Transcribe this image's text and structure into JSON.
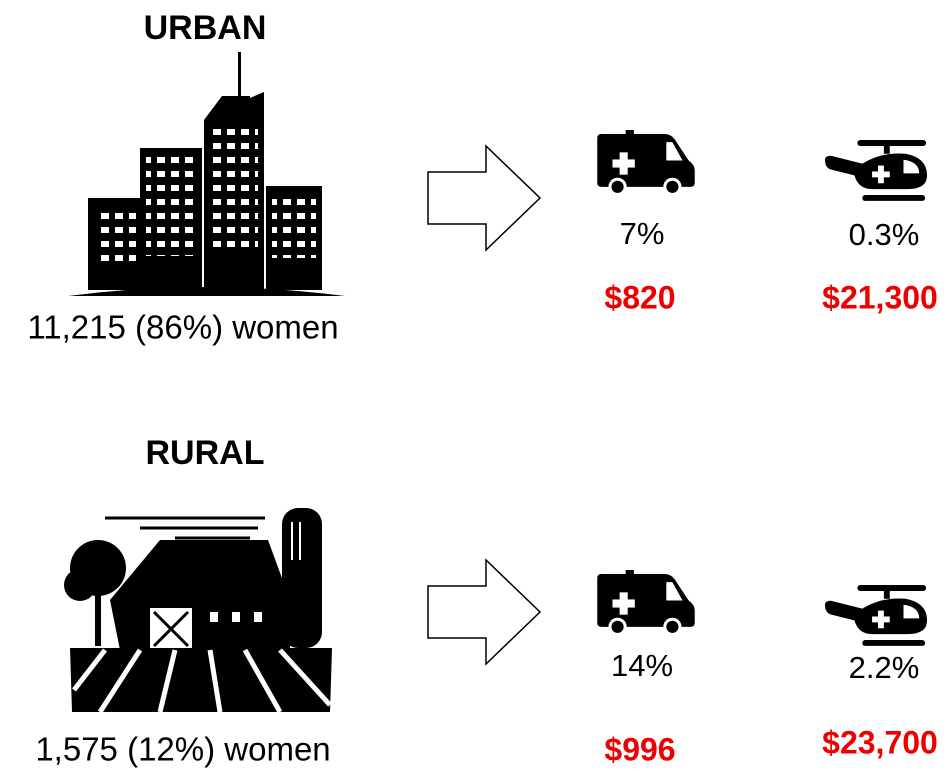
{
  "sections": [
    {
      "title": "URBAN",
      "population": "11,215 (86%) women",
      "ambulance": {
        "percent": "7%",
        "cost": "$820"
      },
      "helicopter": {
        "percent": "0.3%",
        "cost": "$21,300"
      }
    },
    {
      "title": "RURAL",
      "population": "1,575 (12%) women",
      "ambulance": {
        "percent": "14%",
        "cost": "$996"
      },
      "helicopter": {
        "percent": "2.2%",
        "cost": "$23,700"
      }
    }
  ]
}
